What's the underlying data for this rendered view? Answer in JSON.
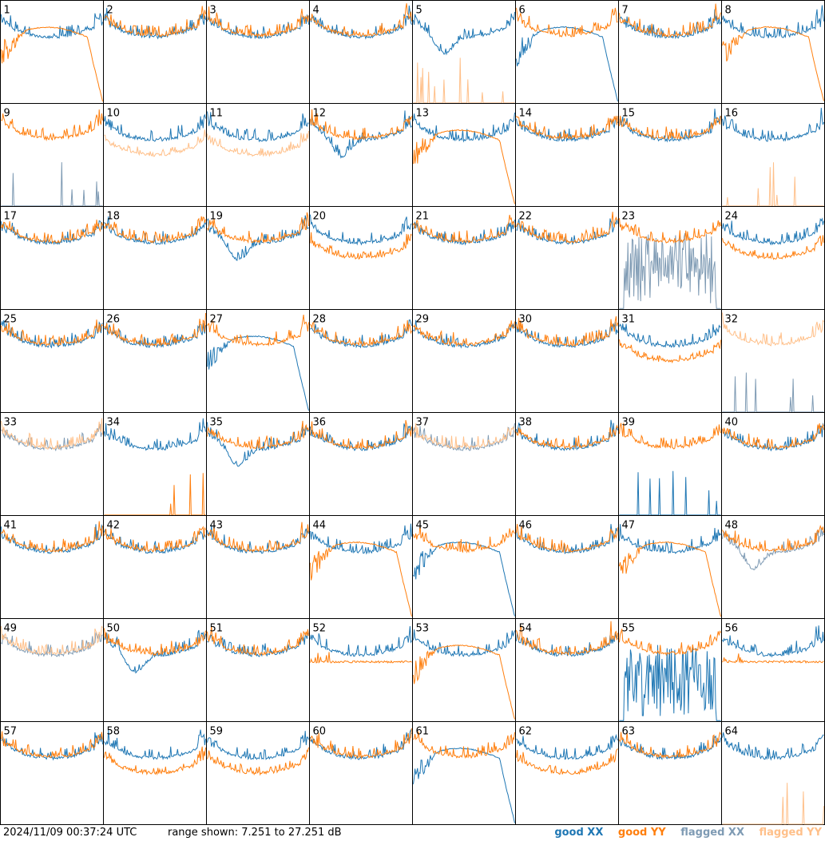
{
  "footer": {
    "timestamp": "2024/11/09 00:37:24 UTC",
    "range_text": "range shown: 7.251 to 27.251 dB"
  },
  "legend": {
    "good_xx": "good XX",
    "good_yy": "good YY",
    "flagged_xx": "flagged XX",
    "flagged_yy": "flagged YY"
  },
  "colors": {
    "good_xx": "#1f77b4",
    "good_yy": "#ff7f0e",
    "flagged_xx": "#7f9bb4",
    "flagged_yy": "#ffc08a"
  },
  "chart_data": {
    "type": "line",
    "title": "",
    "xlabel": "",
    "ylabel": "",
    "ylim": [
      7.251,
      27.251
    ],
    "units": "dB",
    "grid_layout": [
      8,
      8
    ],
    "series_names": [
      "good XX",
      "good YY",
      "flagged XX",
      "flagged YY"
    ],
    "panels": [
      {
        "label": "1",
        "xx": "normal",
        "yy": "droop",
        "xx_flag": false,
        "yy_flag": false
      },
      {
        "label": "2",
        "xx": "normal",
        "yy": "normal",
        "xx_flag": false,
        "yy_flag": false
      },
      {
        "label": "3",
        "xx": "normal",
        "yy": "normal",
        "xx_flag": false,
        "yy_flag": false
      },
      {
        "label": "4",
        "xx": "normal",
        "yy": "normal",
        "xx_flag": false,
        "yy_flag": false
      },
      {
        "label": "5",
        "xx": "dip",
        "yy": "spikes",
        "xx_flag": false,
        "yy_flag": true
      },
      {
        "label": "6",
        "xx": "droop",
        "yy": "normal",
        "xx_flag": false,
        "yy_flag": false
      },
      {
        "label": "7",
        "xx": "normal",
        "yy": "normal",
        "xx_flag": false,
        "yy_flag": false
      },
      {
        "label": "8",
        "xx": "normal",
        "yy": "droop",
        "xx_flag": false,
        "yy_flag": false
      },
      {
        "label": "9",
        "xx": "spikes",
        "yy": "normal",
        "xx_flag": true,
        "yy_flag": false
      },
      {
        "label": "10",
        "xx": "normal",
        "yy": "low",
        "xx_flag": false,
        "yy_flag": true
      },
      {
        "label": "11",
        "xx": "normal",
        "yy": "low",
        "xx_flag": false,
        "yy_flag": true
      },
      {
        "label": "12",
        "xx": "dip",
        "yy": "normal",
        "xx_flag": false,
        "yy_flag": false
      },
      {
        "label": "13",
        "xx": "normal",
        "yy": "droop",
        "xx_flag": false,
        "yy_flag": false
      },
      {
        "label": "14",
        "xx": "normal",
        "yy": "normal",
        "xx_flag": false,
        "yy_flag": false
      },
      {
        "label": "15",
        "xx": "normal",
        "yy": "normal",
        "xx_flag": false,
        "yy_flag": false
      },
      {
        "label": "16",
        "xx": "normal",
        "yy": "spikes",
        "xx_flag": false,
        "yy_flag": true
      },
      {
        "label": "17",
        "xx": "normal",
        "yy": "normal",
        "xx_flag": false,
        "yy_flag": false
      },
      {
        "label": "18",
        "xx": "normal",
        "yy": "normal",
        "xx_flag": false,
        "yy_flag": false
      },
      {
        "label": "19",
        "xx": "dip",
        "yy": "normal",
        "xx_flag": false,
        "yy_flag": false
      },
      {
        "label": "20",
        "xx": "normal",
        "yy": "low",
        "xx_flag": false,
        "yy_flag": false
      },
      {
        "label": "21",
        "xx": "normal",
        "yy": "normal",
        "xx_flag": false,
        "yy_flag": false
      },
      {
        "label": "22",
        "xx": "normal",
        "yy": "normal",
        "xx_flag": false,
        "yy_flag": false
      },
      {
        "label": "23",
        "xx": "noisy",
        "yy": "normal",
        "xx_flag": true,
        "yy_flag": false
      },
      {
        "label": "24",
        "xx": "normal",
        "yy": "low",
        "xx_flag": false,
        "yy_flag": false
      },
      {
        "label": "25",
        "xx": "normal",
        "yy": "normal",
        "xx_flag": false,
        "yy_flag": false
      },
      {
        "label": "26",
        "xx": "normal",
        "yy": "normal",
        "xx_flag": false,
        "yy_flag": false
      },
      {
        "label": "27",
        "xx": "droop",
        "yy": "normal",
        "xx_flag": false,
        "yy_flag": false
      },
      {
        "label": "28",
        "xx": "normal",
        "yy": "normal",
        "xx_flag": false,
        "yy_flag": false
      },
      {
        "label": "29",
        "xx": "normal",
        "yy": "normal",
        "xx_flag": false,
        "yy_flag": false
      },
      {
        "label": "30",
        "xx": "normal",
        "yy": "normal",
        "xx_flag": false,
        "yy_flag": false
      },
      {
        "label": "31",
        "xx": "normal",
        "yy": "low",
        "xx_flag": false,
        "yy_flag": false
      },
      {
        "label": "32",
        "xx": "spikes",
        "yy": "normal",
        "xx_flag": true,
        "yy_flag": true
      },
      {
        "label": "33",
        "xx": "normal",
        "yy": "normal",
        "xx_flag": true,
        "yy_flag": true
      },
      {
        "label": "34",
        "xx": "normal",
        "yy": "spikes",
        "xx_flag": false,
        "yy_flag": false
      },
      {
        "label": "35",
        "xx": "dip",
        "yy": "normal",
        "xx_flag": false,
        "yy_flag": false
      },
      {
        "label": "36",
        "xx": "normal",
        "yy": "normal",
        "xx_flag": false,
        "yy_flag": false
      },
      {
        "label": "37",
        "xx": "normal",
        "yy": "normal",
        "xx_flag": true,
        "yy_flag": true
      },
      {
        "label": "38",
        "xx": "normal",
        "yy": "normal",
        "xx_flag": false,
        "yy_flag": false
      },
      {
        "label": "39",
        "xx": "spikes",
        "yy": "normal",
        "xx_flag": false,
        "yy_flag": false
      },
      {
        "label": "40",
        "xx": "normal",
        "yy": "normal",
        "xx_flag": false,
        "yy_flag": false
      },
      {
        "label": "41",
        "xx": "normal",
        "yy": "normal",
        "xx_flag": false,
        "yy_flag": false
      },
      {
        "label": "42",
        "xx": "normal",
        "yy": "normal",
        "xx_flag": false,
        "yy_flag": false
      },
      {
        "label": "43",
        "xx": "normal",
        "yy": "normal",
        "xx_flag": false,
        "yy_flag": false
      },
      {
        "label": "44",
        "xx": "normal",
        "yy": "droop",
        "xx_flag": false,
        "yy_flag": false
      },
      {
        "label": "45",
        "xx": "droop",
        "yy": "normal",
        "xx_flag": false,
        "yy_flag": false
      },
      {
        "label": "46",
        "xx": "normal",
        "yy": "normal",
        "xx_flag": false,
        "yy_flag": false
      },
      {
        "label": "47",
        "xx": "normal",
        "yy": "droop",
        "xx_flag": false,
        "yy_flag": false
      },
      {
        "label": "48",
        "xx": "dip",
        "yy": "normal",
        "xx_flag": true,
        "yy_flag": false
      },
      {
        "label": "49",
        "xx": "normal",
        "yy": "normal",
        "xx_flag": true,
        "yy_flag": true
      },
      {
        "label": "50",
        "xx": "dip",
        "yy": "normal",
        "xx_flag": false,
        "yy_flag": false
      },
      {
        "label": "51",
        "xx": "normal",
        "yy": "normal",
        "xx_flag": false,
        "yy_flag": false
      },
      {
        "label": "52",
        "xx": "normal",
        "yy": "flat",
        "xx_flag": false,
        "yy_flag": false
      },
      {
        "label": "53",
        "xx": "normal",
        "yy": "droop",
        "xx_flag": false,
        "yy_flag": false
      },
      {
        "label": "54",
        "xx": "normal",
        "yy": "normal",
        "xx_flag": false,
        "yy_flag": false
      },
      {
        "label": "55",
        "xx": "noisy",
        "yy": "normal",
        "xx_flag": false,
        "yy_flag": false
      },
      {
        "label": "56",
        "xx": "normal",
        "yy": "flat",
        "xx_flag": false,
        "yy_flag": false
      },
      {
        "label": "57",
        "xx": "normal",
        "yy": "normal",
        "xx_flag": false,
        "yy_flag": false
      },
      {
        "label": "58",
        "xx": "normal",
        "yy": "low",
        "xx_flag": false,
        "yy_flag": false
      },
      {
        "label": "59",
        "xx": "normal",
        "yy": "low",
        "xx_flag": false,
        "yy_flag": false
      },
      {
        "label": "60",
        "xx": "normal",
        "yy": "normal",
        "xx_flag": false,
        "yy_flag": false
      },
      {
        "label": "61",
        "xx": "droop",
        "yy": "normal",
        "xx_flag": false,
        "yy_flag": false
      },
      {
        "label": "62",
        "xx": "normal",
        "yy": "low",
        "xx_flag": false,
        "yy_flag": false
      },
      {
        "label": "63",
        "xx": "normal",
        "yy": "normal",
        "xx_flag": false,
        "yy_flag": false
      },
      {
        "label": "64",
        "xx": "normal",
        "yy": "spikes",
        "xx_flag": false,
        "yy_flag": true
      }
    ]
  }
}
